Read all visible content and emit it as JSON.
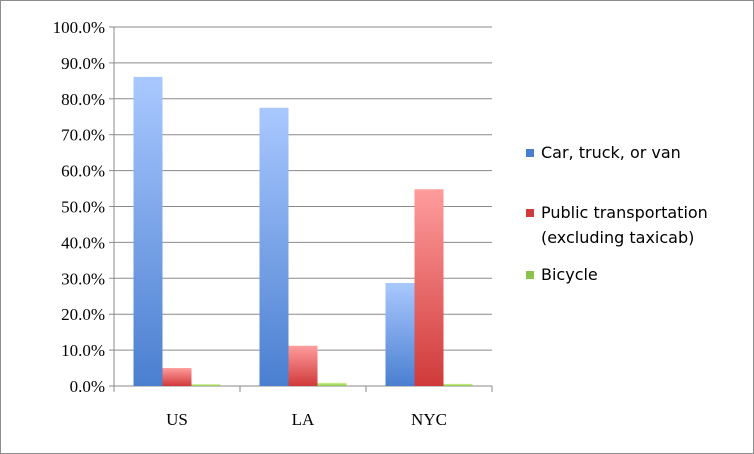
{
  "chart_data": {
    "type": "bar",
    "categories": [
      "US",
      "LA",
      "NYC"
    ],
    "series": [
      {
        "name": "Car, truck, or van",
        "values": [
          86.1,
          77.5,
          28.7
        ],
        "color": "#4a7fd0",
        "light": "#a9c8ff"
      },
      {
        "name": "Public transportation (excluding taxicab)",
        "legend_lines": [
          "Public transportation",
          "(excluding taxicab)"
        ],
        "values": [
          5.0,
          11.2,
          54.8
        ],
        "color": "#d03a3a",
        "light": "#ff9c9c"
      },
      {
        "name": "Bicycle",
        "values": [
          0.5,
          0.9,
          0.6
        ],
        "color": "#8bc34a",
        "light": "#d4f59a"
      }
    ],
    "yticks": [
      "0.0%",
      "10.0%",
      "20.0%",
      "30.0%",
      "40.0%",
      "50.0%",
      "60.0%",
      "70.0%",
      "80.0%",
      "90.0%",
      "100.0%"
    ],
    "ylim": [
      0,
      100
    ],
    "grid": true,
    "legend_position": "right"
  }
}
